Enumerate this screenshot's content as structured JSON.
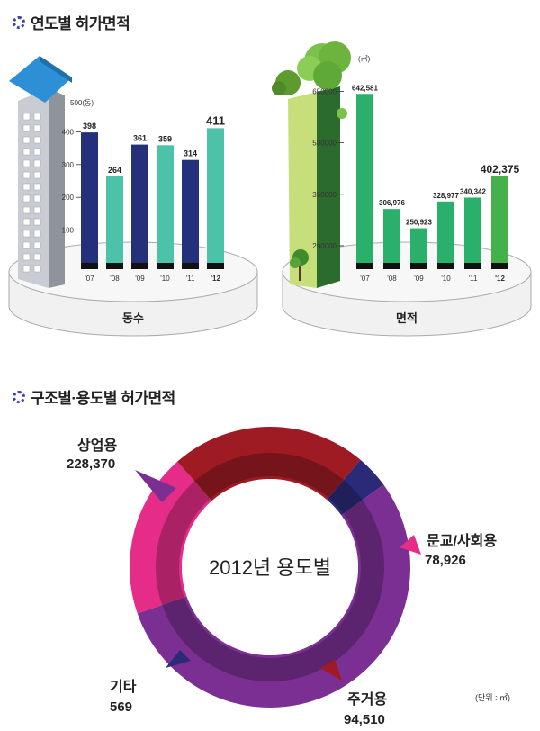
{
  "section1": {
    "title": "연도별 허가면적",
    "icon": "ring-icon"
  },
  "section2": {
    "title": "구조별·용도별 허가면적",
    "icon": "ring-icon"
  },
  "chart_data": [
    {
      "type": "bar",
      "title": "",
      "xlabel": "동수",
      "ylabel": "",
      "unit_label": "500(동)",
      "categories": [
        "'07",
        "'08",
        "'09",
        "'10",
        "'11",
        "'12"
      ],
      "values": [
        398,
        264,
        361,
        359,
        314,
        411
      ],
      "value_labels": [
        "398",
        "264",
        "361",
        "359",
        "314",
        "411"
      ],
      "yticks": [
        100,
        200,
        300,
        400
      ],
      "ylim": [
        0,
        500
      ],
      "colors": [
        "#24307a",
        "#4cc3a8",
        "#24307a",
        "#4cc3a8",
        "#24307a",
        "#4cc3a8"
      ]
    },
    {
      "type": "bar",
      "title": "",
      "xlabel": "면적",
      "ylabel": "",
      "unit_label": "(㎡)",
      "categories": [
        "'07",
        "'08",
        "'09",
        "'10",
        "'11",
        "'12"
      ],
      "values": [
        642581,
        306976,
        250923,
        328977,
        340342,
        402375
      ],
      "value_labels": [
        "642,581",
        "306,976",
        "250,923",
        "328,977",
        "340,342",
        "402,375"
      ],
      "yticks": [
        200000,
        350000,
        500000,
        650000
      ],
      "ylim": [
        150000,
        680000
      ],
      "colors": [
        "#2ab06a",
        "#2ab06a",
        "#2ab06a",
        "#2ab06a",
        "#2ab06a",
        "#44b14a"
      ]
    },
    {
      "type": "pie",
      "title": "2012년 용도별",
      "unit_label": "(단위 : ㎡)",
      "labels": [
        "상업용",
        "문교/사회용",
        "주거용",
        "기타"
      ],
      "values": [
        228370,
        78926,
        94510,
        569
      ],
      "value_labels": [
        "228,370",
        "78,926",
        "94,510",
        "569"
      ],
      "colors": [
        "#7b2f93",
        "#e42c88",
        "#9e1b24",
        "#2b2a78"
      ]
    }
  ]
}
